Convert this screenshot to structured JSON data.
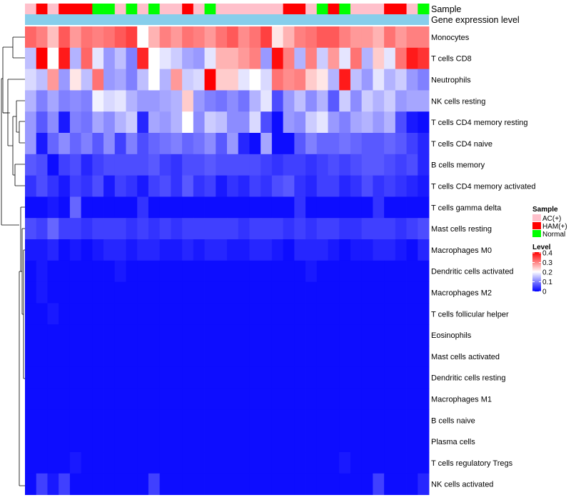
{
  "chart_data": {
    "type": "heatmap",
    "annotation_rows": [
      {
        "name": "Sample",
        "values": [
          "AC(+)",
          "HAM(+)",
          "AC(+)",
          "HAM(+)",
          "HAM(+)",
          "HAM(+)",
          "Normal",
          "Normal",
          "AC(+)",
          "Normal",
          "AC(+)",
          "Normal",
          "AC(+)",
          "AC(+)",
          "HAM(+)",
          "AC(+)",
          "Normal",
          "AC(+)",
          "AC(+)",
          "AC(+)",
          "AC(+)",
          "AC(+)",
          "AC(+)",
          "HAM(+)",
          "HAM(+)",
          "AC(+)",
          "Normal",
          "HAM(+)",
          "Normal",
          "AC(+)",
          "AC(+)",
          "AC(+)",
          "HAM(+)",
          "HAM(+)",
          "AC(+)",
          "Normal"
        ]
      },
      {
        "name": "Gene expression level",
        "values": [
          "Gene expression level"
        ]
      }
    ],
    "rows": [
      "Monocytes",
      "T cells CD8",
      "Neutrophils",
      "NK cells resting",
      "T cells CD4 memory resting",
      "T cells CD4 naive",
      "B cells memory",
      "T cells CD4 memory activated",
      "T cells gamma delta",
      "Mast cells resting",
      "Macrophages M0",
      "Dendritic cells activated",
      "Macrophages M2",
      "T cells follicular helper",
      "Eosinophils",
      "Mast cells activated",
      "Dendritic cells resting",
      "Macrophages M1",
      "B cells naive",
      "Plasma cells",
      "T cells regulatory  Tregs",
      "NK cells activated"
    ],
    "values": [
      [
        0.32,
        0.3,
        0.25,
        0.33,
        0.28,
        0.31,
        0.3,
        0.31,
        0.33,
        0.35,
        0.2,
        0.26,
        0.3,
        0.28,
        0.31,
        0.3,
        0.28,
        0.31,
        0.33,
        0.29,
        0.31,
        0.35,
        0.22,
        0.26,
        0.3,
        0.31,
        0.33,
        0.33,
        0.3,
        0.28,
        0.28,
        0.26,
        0.31,
        0.28,
        0.3,
        0.3
      ],
      [
        0.15,
        0.4,
        0.2,
        0.38,
        0.14,
        0.32,
        0.18,
        0.12,
        0.15,
        0.1,
        0.37,
        0.2,
        0.18,
        0.16,
        0.13,
        0.12,
        0.18,
        0.26,
        0.26,
        0.28,
        0.3,
        0.12,
        0.39,
        0.3,
        0.14,
        0.3,
        0.16,
        0.28,
        0.18,
        0.31,
        0.14,
        0.24,
        0.18,
        0.31,
        0.38,
        0.36
      ],
      [
        0.17,
        0.15,
        0.28,
        0.12,
        0.22,
        0.15,
        0.31,
        0.12,
        0.13,
        0.1,
        0.15,
        0.2,
        0.14,
        0.28,
        0.16,
        0.17,
        0.4,
        0.24,
        0.24,
        0.18,
        0.2,
        0.17,
        0.31,
        0.29,
        0.3,
        0.24,
        0.22,
        0.14,
        0.38,
        0.15,
        0.12,
        0.18,
        0.14,
        0.16,
        0.12,
        0.1
      ],
      [
        0.14,
        0.1,
        0.13,
        0.1,
        0.11,
        0.1,
        0.19,
        0.17,
        0.18,
        0.14,
        0.12,
        0.12,
        0.13,
        0.14,
        0.24,
        0.12,
        0.1,
        0.09,
        0.11,
        0.09,
        0.14,
        0.18,
        0.06,
        0.12,
        0.15,
        0.11,
        0.14,
        0.07,
        0.16,
        0.11,
        0.16,
        0.14,
        0.16,
        0.12,
        0.13,
        0.13
      ],
      [
        0.12,
        0.07,
        0.11,
        0.02,
        0.1,
        0.09,
        0.13,
        0.11,
        0.14,
        0.16,
        0.03,
        0.13,
        0.12,
        0.14,
        0.2,
        0.11,
        0.16,
        0.15,
        0.11,
        0.11,
        0.17,
        0.06,
        0.01,
        0.12,
        0.11,
        0.16,
        0.18,
        0.12,
        0.1,
        0.13,
        0.14,
        0.12,
        0.14,
        0.06,
        0.02,
        0.01
      ],
      [
        0.12,
        0.02,
        0.08,
        0.11,
        0.08,
        0.1,
        0.07,
        0.11,
        0.05,
        0.1,
        0.06,
        0.08,
        0.09,
        0.1,
        0.08,
        0.09,
        0.11,
        0.07,
        0.12,
        0.03,
        0.01,
        0.13,
        0.01,
        0.01,
        0.07,
        0.1,
        0.08,
        0.08,
        0.09,
        0.08,
        0.07,
        0.07,
        0.08,
        0.07,
        0.05,
        0.03
      ],
      [
        0.07,
        0.06,
        0.01,
        0.05,
        0.06,
        0.03,
        0.05,
        0.06,
        0.06,
        0.06,
        0.06,
        0.07,
        0.05,
        0.04,
        0.06,
        0.06,
        0.07,
        0.06,
        0.06,
        0.06,
        0.06,
        0.05,
        0.04,
        0.05,
        0.05,
        0.04,
        0.05,
        0.06,
        0.05,
        0.06,
        0.07,
        0.07,
        0.06,
        0.05,
        0.06,
        0.03
      ],
      [
        0.04,
        0.06,
        0.04,
        0.02,
        0.05,
        0.04,
        0.06,
        0.02,
        0.05,
        0.04,
        0.02,
        0.05,
        0.06,
        0.04,
        0.07,
        0.04,
        0.05,
        0.02,
        0.04,
        0.03,
        0.05,
        0.04,
        0.06,
        0.07,
        0.04,
        0.03,
        0.05,
        0.05,
        0.03,
        0.04,
        0.06,
        0.04,
        0.05,
        0.04,
        0.03,
        0.02
      ],
      [
        0.01,
        0.01,
        0.02,
        0.01,
        0.08,
        0.01,
        0.01,
        0.01,
        0.01,
        0.01,
        0.04,
        0.01,
        0.01,
        0.01,
        0.01,
        0.01,
        0.01,
        0.01,
        0.01,
        0.01,
        0.01,
        0.01,
        0.01,
        0.01,
        0.04,
        0.01,
        0.01,
        0.01,
        0.01,
        0.01,
        0.01,
        0.04,
        0.01,
        0.01,
        0.01,
        0.01
      ],
      [
        0.06,
        0.05,
        0.08,
        0.05,
        0.05,
        0.04,
        0.05,
        0.05,
        0.05,
        0.04,
        0.05,
        0.04,
        0.05,
        0.04,
        0.05,
        0.05,
        0.05,
        0.05,
        0.05,
        0.04,
        0.05,
        0.05,
        0.05,
        0.04,
        0.05,
        0.04,
        0.05,
        0.05,
        0.04,
        0.04,
        0.05,
        0.05,
        0.05,
        0.04,
        0.05,
        0.06
      ],
      [
        0.02,
        0.02,
        0.03,
        0.01,
        0.02,
        0.01,
        0.02,
        0.03,
        0.03,
        0.02,
        0.03,
        0.03,
        0.02,
        0.02,
        0.03,
        0.02,
        0.03,
        0.03,
        0.02,
        0.02,
        0.03,
        0.03,
        0.02,
        0.01,
        0.03,
        0.03,
        0.03,
        0.02,
        0.01,
        0.02,
        0.02,
        0.03,
        0.03,
        0.02,
        0.01,
        0.03
      ],
      [
        0.01,
        0.02,
        0.01,
        0.01,
        0.01,
        0.01,
        0.01,
        0.01,
        0.02,
        0.01,
        0.01,
        0.01,
        0.01,
        0.01,
        0.01,
        0.01,
        0.01,
        0.01,
        0.01,
        0.01,
        0.01,
        0.01,
        0.01,
        0.01,
        0.01,
        0.02,
        0.01,
        0.01,
        0.01,
        0.01,
        0.01,
        0.01,
        0.01,
        0.01,
        0.01,
        0.01
      ],
      [
        0.01,
        0.02,
        0.01,
        0.01,
        0.01,
        0.01,
        0.01,
        0.01,
        0.01,
        0.01,
        0.01,
        0.01,
        0.01,
        0.01,
        0.01,
        0.01,
        0.01,
        0.01,
        0.01,
        0.01,
        0.01,
        0.01,
        0.01,
        0.01,
        0.01,
        0.01,
        0.01,
        0.01,
        0.01,
        0.01,
        0.01,
        0.01,
        0.01,
        0.01,
        0.01,
        0.01
      ],
      [
        0.01,
        0.01,
        0.02,
        0.01,
        0.01,
        0.01,
        0.01,
        0.01,
        0.01,
        0.01,
        0.01,
        0.01,
        0.01,
        0.01,
        0.01,
        0.01,
        0.01,
        0.01,
        0.01,
        0.01,
        0.01,
        0.01,
        0.01,
        0.01,
        0.01,
        0.01,
        0.01,
        0.01,
        0.01,
        0.01,
        0.01,
        0.01,
        0.01,
        0.01,
        0.01,
        0.01
      ],
      [
        0.01,
        0.01,
        0.01,
        0.01,
        0.01,
        0.01,
        0.01,
        0.01,
        0.01,
        0.01,
        0.01,
        0.01,
        0.01,
        0.01,
        0.01,
        0.01,
        0.01,
        0.01,
        0.01,
        0.01,
        0.01,
        0.01,
        0.01,
        0.01,
        0.01,
        0.01,
        0.01,
        0.01,
        0.01,
        0.01,
        0.01,
        0.01,
        0.01,
        0.01,
        0.01,
        0.01
      ],
      [
        0.01,
        0.01,
        0.01,
        0.01,
        0.01,
        0.01,
        0.01,
        0.01,
        0.01,
        0.01,
        0.01,
        0.01,
        0.01,
        0.01,
        0.01,
        0.01,
        0.01,
        0.01,
        0.01,
        0.01,
        0.01,
        0.01,
        0.01,
        0.01,
        0.01,
        0.01,
        0.01,
        0.01,
        0.01,
        0.01,
        0.01,
        0.01,
        0.01,
        0.01,
        0.01,
        0.01
      ],
      [
        0.01,
        0.01,
        0.01,
        0.01,
        0.01,
        0.01,
        0.01,
        0.01,
        0.01,
        0.01,
        0.01,
        0.01,
        0.01,
        0.01,
        0.01,
        0.01,
        0.01,
        0.01,
        0.01,
        0.01,
        0.01,
        0.01,
        0.01,
        0.01,
        0.01,
        0.01,
        0.01,
        0.01,
        0.01,
        0.01,
        0.01,
        0.01,
        0.01,
        0.01,
        0.01,
        0.01
      ],
      [
        0.01,
        0.01,
        0.01,
        0.01,
        0.01,
        0.01,
        0.01,
        0.01,
        0.01,
        0.01,
        0.01,
        0.01,
        0.01,
        0.01,
        0.01,
        0.01,
        0.01,
        0.01,
        0.01,
        0.01,
        0.01,
        0.01,
        0.01,
        0.01,
        0.01,
        0.01,
        0.01,
        0.01,
        0.01,
        0.01,
        0.01,
        0.01,
        0.01,
        0.01,
        0.01,
        0.01
      ],
      [
        0.01,
        0.01,
        0.01,
        0.01,
        0.01,
        0.01,
        0.01,
        0.01,
        0.01,
        0.01,
        0.01,
        0.01,
        0.01,
        0.01,
        0.01,
        0.01,
        0.01,
        0.01,
        0.01,
        0.01,
        0.01,
        0.01,
        0.01,
        0.01,
        0.01,
        0.01,
        0.01,
        0.01,
        0.01,
        0.01,
        0.01,
        0.01,
        0.01,
        0.01,
        0.01,
        0.01
      ],
      [
        0.01,
        0.01,
        0.01,
        0.01,
        0.01,
        0.01,
        0.01,
        0.01,
        0.01,
        0.01,
        0.01,
        0.01,
        0.01,
        0.01,
        0.01,
        0.01,
        0.01,
        0.01,
        0.01,
        0.01,
        0.01,
        0.01,
        0.01,
        0.01,
        0.01,
        0.01,
        0.01,
        0.01,
        0.01,
        0.01,
        0.01,
        0.01,
        0.01,
        0.01,
        0.01,
        0.01
      ],
      [
        0.01,
        0.01,
        0.01,
        0.01,
        0.02,
        0.01,
        0.01,
        0.01,
        0.01,
        0.01,
        0.01,
        0.01,
        0.01,
        0.01,
        0.01,
        0.01,
        0.01,
        0.01,
        0.01,
        0.01,
        0.01,
        0.01,
        0.01,
        0.01,
        0.01,
        0.01,
        0.01,
        0.01,
        0.02,
        0.01,
        0.01,
        0.01,
        0.01,
        0.01,
        0.01,
        0.01
      ],
      [
        0.01,
        0.05,
        0.02,
        0.05,
        0.01,
        0.01,
        0.01,
        0.01,
        0.01,
        0.01,
        0.01,
        0.05,
        0.01,
        0.01,
        0.01,
        0.01,
        0.01,
        0.01,
        0.01,
        0.01,
        0.01,
        0.01,
        0.01,
        0.01,
        0.01,
        0.01,
        0.01,
        0.01,
        0.01,
        0.01,
        0.01,
        0.05,
        0.01,
        0.01,
        0.01,
        0.03
      ]
    ],
    "legend": {
      "sample_title": "Sample",
      "sample_levels": [
        {
          "label": "AC(+)",
          "color": "#ffc0cb"
        },
        {
          "label": "HAM(+)",
          "color": "#ff0000"
        },
        {
          "label": "Normal",
          "color": "#00ff00"
        }
      ],
      "gene_color": "#87ceeb",
      "level_title": "Level",
      "level_ticks": [
        "0.4",
        "0.3",
        "0.2",
        "0.1",
        "0"
      ],
      "scale_min": 0,
      "scale_max": 0.4,
      "colors": {
        "low": "#0000ff",
        "mid": "#ffffff",
        "high": "#ff0000"
      }
    }
  }
}
